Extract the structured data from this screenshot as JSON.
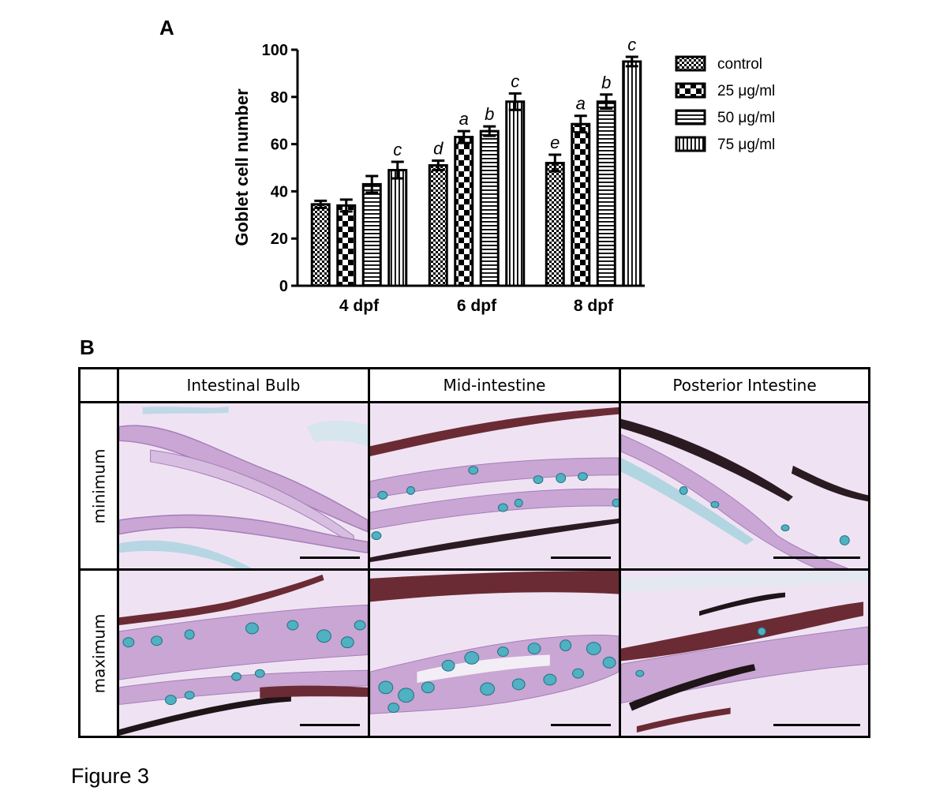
{
  "panels": {
    "a": "A",
    "b": "B"
  },
  "figure_caption": "Figure 3",
  "chart_data": {
    "type": "bar",
    "title": "",
    "xlabel": "",
    "ylabel": "Goblet cell number",
    "ylim": [
      0,
      100
    ],
    "yticks": [
      0,
      20,
      40,
      60,
      80,
      100
    ],
    "categories": [
      "4 dpf",
      "6 dpf",
      "8 dpf"
    ],
    "legend_position": "right",
    "series": [
      {
        "name": "control",
        "pattern": "checker-fine",
        "values": [
          34.5,
          51,
          52
        ],
        "errors": [
          1.5,
          2,
          3.5
        ],
        "labels": [
          "",
          "d",
          "e"
        ]
      },
      {
        "name": "25 μg/ml",
        "pattern": "checker-coarse",
        "values": [
          34,
          63,
          68.5
        ],
        "errors": [
          2.5,
          2.5,
          3.5
        ],
        "labels": [
          "",
          "a",
          "a"
        ]
      },
      {
        "name": "50 μg/ml",
        "pattern": "horizontal",
        "values": [
          43,
          65.5,
          78
        ],
        "errors": [
          3.5,
          2,
          3
        ],
        "labels": [
          "",
          "b",
          "b"
        ]
      },
      {
        "name": "75 μg/ml",
        "pattern": "vertical",
        "values": [
          49,
          78,
          95
        ],
        "errors": [
          3.5,
          3.5,
          2
        ],
        "labels": [
          "c",
          "c",
          "c"
        ]
      }
    ]
  },
  "histology": {
    "columns": [
      "Intestinal Bulb",
      "Mid-intestine",
      "Posterior Intestine"
    ],
    "rows": [
      "minimum",
      "maximum"
    ]
  },
  "colors": {
    "stain_background": "#eadcef",
    "tissue_pink": "#c9a6d3",
    "goblet_blue": "#4fb1c2",
    "melanin": "#5a1f2a"
  }
}
